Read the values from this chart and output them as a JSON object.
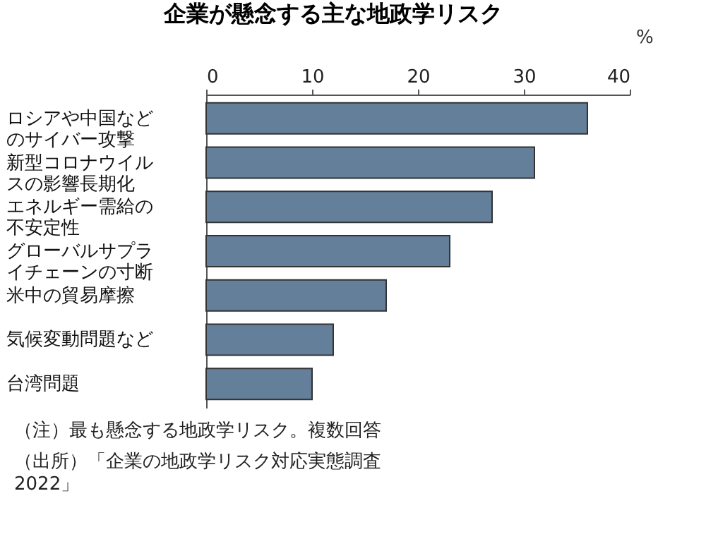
{
  "chart_data": {
    "type": "bar",
    "orientation": "horizontal",
    "title": "企業が懸念する主な地政学リスク",
    "xlabel": "%",
    "categories": [
      "ロシアや中国などのサイバー攻撃",
      "新型コロナウイルスの影響長期化",
      "エネルギー需給の不安定性",
      "グローバルサプライチェーンの寸断",
      "米中の貿易摩擦",
      "気候変動問題など",
      "台湾問題"
    ],
    "values": [
      36,
      31,
      27,
      23,
      17,
      12,
      10
    ],
    "color": "#647f99",
    "xlim": [
      0,
      40
    ],
    "xticks": [
      0,
      10,
      20,
      30,
      40
    ],
    "grid": false,
    "annotations": [
      "（注）最も懸念する地政学リスク。複数回答",
      "（出所）「企業の地政学リスク対応実態調査2022」"
    ]
  }
}
